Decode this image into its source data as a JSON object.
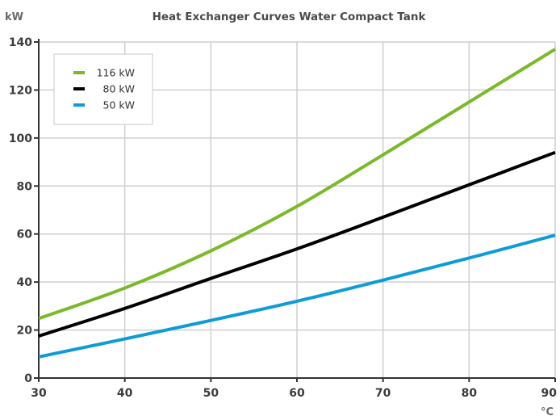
{
  "chart_data": {
    "type": "line",
    "title": "Heat Exchanger Curves Water Compact Tank",
    "ylabel": "kW",
    "xlabel": "°C",
    "xlim": [
      30,
      90
    ],
    "ylim": [
      0,
      140
    ],
    "x_ticks": [
      30,
      40,
      50,
      60,
      70,
      80,
      90
    ],
    "y_ticks": [
      0,
      20,
      40,
      60,
      80,
      100,
      120,
      140
    ],
    "grid": true,
    "legend_position": "top-left",
    "x": [
      30,
      40,
      50,
      60,
      70,
      80,
      90
    ],
    "series": [
      {
        "name": "116 kW",
        "color": "#7ab929",
        "values": [
          24.8,
          37.5,
          53.0,
          71.5,
          93.0,
          115.0,
          137.0
        ]
      },
      {
        "name": "80 kW",
        "color": "#000000",
        "values": [
          17.5,
          29.0,
          41.5,
          53.8,
          67.0,
          80.5,
          94.0
        ]
      },
      {
        "name": "50 kW",
        "color": "#0f9bd7",
        "values": [
          8.8,
          16.3,
          24.0,
          32.0,
          40.8,
          50.0,
          59.5
        ]
      }
    ]
  }
}
